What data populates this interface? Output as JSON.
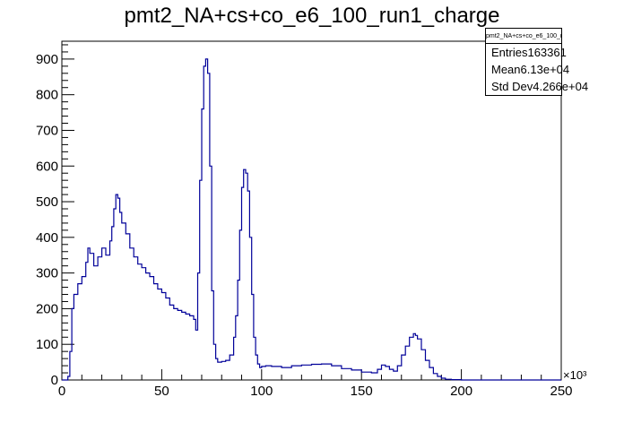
{
  "chart_data": {
    "type": "histogram",
    "title": "pmt2_NA+cs+co_e6_100_run1_charge",
    "xlabel": "",
    "ylabel": "",
    "x_unit_multiplier": "×10³",
    "xlim": [
      0,
      250
    ],
    "ylim": [
      0,
      950
    ],
    "x_ticks": [
      "0",
      "50",
      "100",
      "150",
      "200",
      "250"
    ],
    "y_ticks": [
      "0",
      "100",
      "200",
      "300",
      "400",
      "500",
      "600",
      "700",
      "800",
      "900"
    ],
    "series": [
      {
        "name": "",
        "color": "#000099",
        "x": [
          0,
          2,
          3,
          4,
          5,
          6,
          8,
          10,
          12,
          13,
          14,
          16,
          18,
          20,
          22,
          24,
          25,
          26,
          27,
          28,
          29,
          30,
          32,
          34,
          36,
          38,
          40,
          42,
          44,
          46,
          48,
          50,
          52,
          54,
          56,
          58,
          60,
          62,
          64,
          66,
          67,
          68,
          69,
          70,
          71,
          72,
          73,
          74,
          75,
          76,
          77,
          78,
          80,
          82,
          84,
          86,
          87,
          88,
          89,
          90,
          91,
          92,
          93,
          94,
          95,
          96,
          97,
          98,
          99,
          100,
          102,
          105,
          110,
          115,
          120,
          125,
          130,
          135,
          140,
          145,
          150,
          155,
          158,
          160,
          162,
          164,
          166,
          168,
          170,
          172,
          174,
          176,
          177,
          178,
          180,
          182,
          184,
          186,
          188,
          190,
          192,
          195,
          200,
          210,
          220,
          230,
          240,
          250
        ],
        "values": [
          0,
          0,
          10,
          80,
          200,
          240,
          270,
          290,
          330,
          370,
          355,
          320,
          345,
          370,
          350,
          390,
          430,
          480,
          520,
          510,
          470,
          440,
          410,
          370,
          345,
          325,
          315,
          300,
          290,
          270,
          255,
          245,
          230,
          210,
          200,
          195,
          190,
          185,
          180,
          170,
          140,
          300,
          560,
          760,
          880,
          900,
          860,
          600,
          250,
          100,
          60,
          50,
          52,
          55,
          70,
          120,
          180,
          280,
          420,
          540,
          590,
          580,
          530,
          400,
          240,
          120,
          70,
          45,
          35,
          38,
          40,
          38,
          35,
          40,
          42,
          44,
          45,
          40,
          32,
          28,
          22,
          20,
          30,
          42,
          38,
          30,
          25,
          40,
          70,
          95,
          120,
          130,
          125,
          115,
          85,
          55,
          35,
          18,
          10,
          5,
          2,
          1,
          0,
          0,
          0,
          0,
          0,
          0
        ]
      }
    ],
    "stats_box": {
      "title": "pmt2_NA+cs+co_e6_100_run1_charge",
      "rows": [
        {
          "label": "Entries",
          "value": "163361"
        },
        {
          "label": "Mean",
          "value": "6.13e+04"
        },
        {
          "label": "Std Dev",
          "value": "4.266e+04"
        }
      ]
    },
    "grid": false,
    "legend": "none"
  }
}
